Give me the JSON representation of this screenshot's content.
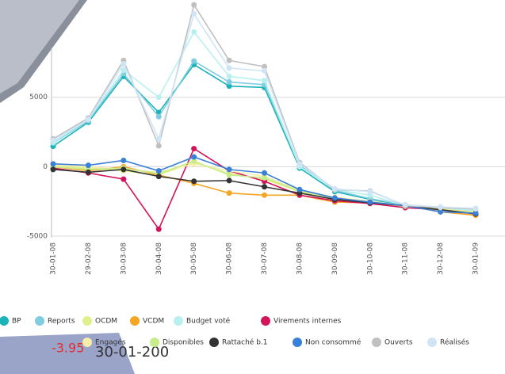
{
  "chart_data": {
    "type": "line",
    "categories": [
      "30-01-08",
      "29-02-08",
      "30-03-08",
      "30-04-08",
      "30-05-08",
      "30-06-08",
      "30-07-08",
      "30-08-08",
      "30-09-08",
      "30-10-08",
      "30-11-08",
      "30-12-08",
      "30-01-09"
    ],
    "ylim": [
      -5000,
      12000
    ],
    "yticks": [
      -5000,
      0,
      5000
    ],
    "grid": true,
    "legend": "bottom",
    "series": [
      {
        "name": "BP",
        "color": "#1bb3b8",
        "values": [
          1470,
          3200,
          6500,
          3900,
          7350,
          5800,
          5700,
          -100,
          -1800,
          -2350,
          -2800,
          -3050,
          -3250
        ]
      },
      {
        "name": "Reports",
        "color": "#7fcde0",
        "values": [
          1700,
          3300,
          6700,
          3600,
          7600,
          6100,
          5900,
          100,
          -1700,
          -2300,
          -2750,
          -3000,
          -3200
        ]
      },
      {
        "name": "OCDM",
        "color": "#e0f08a",
        "values": [
          0,
          -100,
          -300,
          -600,
          300,
          -500,
          -900,
          -1800,
          -2300,
          -2600,
          -2850,
          -3100,
          -3300
        ]
      },
      {
        "name": "VCDM",
        "color": "#f5a623",
        "values": [
          0,
          -300,
          0,
          -600,
          -1200,
          -1900,
          -2050,
          -2050,
          -2550,
          -2600,
          -2800,
          -3250,
          -3500
        ]
      },
      {
        "name": "Budget voté",
        "color": "#b8f0f0",
        "values": [
          1750,
          3400,
          6950,
          5000,
          9700,
          6500,
          6200,
          0,
          -1650,
          -2050,
          -2800,
          -2950,
          -3150
        ]
      },
      {
        "name": "Virements internes",
        "color": "#d4145a",
        "values": [
          -100,
          -450,
          -900,
          -4500,
          1300,
          -300,
          -1050,
          -2050,
          -2450,
          -2650,
          -2950,
          -3100,
          -3400
        ]
      },
      {
        "name": "Engagés",
        "color": "#f8eeaa",
        "values": [
          100,
          0,
          -200,
          -400,
          200,
          -300,
          -700,
          -1700,
          -2200,
          -2500,
          -2800,
          -3050,
          -3250
        ]
      },
      {
        "name": "Disponibles",
        "color": "#c8ec8a",
        "values": [
          0,
          -200,
          -100,
          -500,
          400,
          -600,
          -800,
          -1750,
          -2250,
          -2550,
          -2850,
          -3100,
          -3300
        ]
      },
      {
        "name": "Rattaché b.1",
        "color": "#333333",
        "values": [
          -200,
          -400,
          -200,
          -700,
          -1050,
          -1000,
          -1450,
          -1900,
          -2350,
          -2600,
          -2800,
          -3100,
          -3400
        ]
      },
      {
        "name": "Non consommé",
        "color": "#3a80d8",
        "values": [
          200,
          100,
          450,
          -300,
          700,
          -200,
          -450,
          -1650,
          -2250,
          -2550,
          -2800,
          -3250,
          -3350
        ]
      },
      {
        "name": "Ouverts",
        "color": "#c0c0c0",
        "values": [
          2000,
          3500,
          7650,
          1500,
          11650,
          7650,
          7200,
          300,
          -1650,
          -1750,
          -2800,
          -2950,
          -3050
        ]
      },
      {
        "name": "Réalisés",
        "color": "#cfe5f5",
        "values": [
          1900,
          3400,
          7400,
          2000,
          11000,
          7100,
          6900,
          200,
          -1600,
          -1800,
          -2750,
          -2900,
          -3000
        ]
      }
    ]
  },
  "fragments": {
    "amount": "-3.95",
    "date": "30-01-200"
  }
}
